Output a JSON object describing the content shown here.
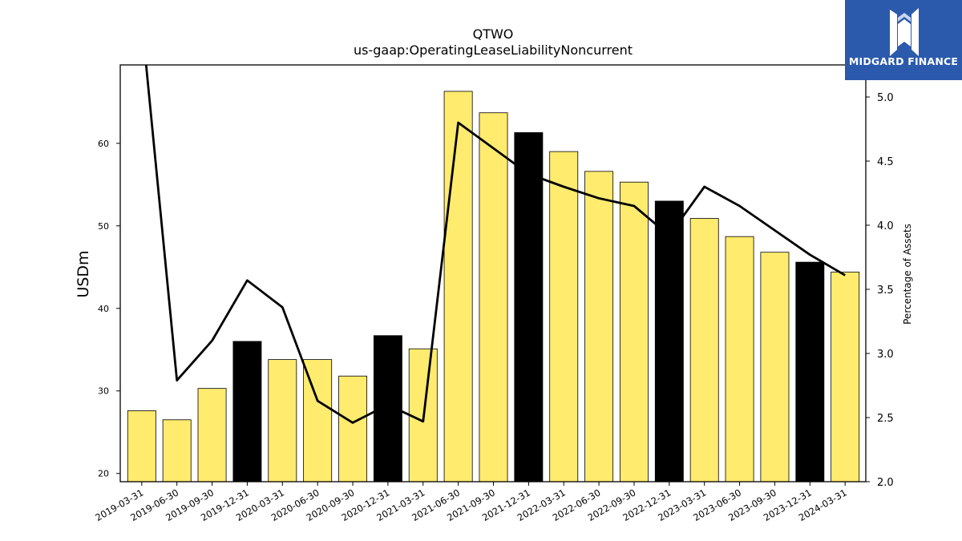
{
  "chart_data": {
    "type": "bar",
    "title": "QTWO",
    "subtitle": "us-gaap:OperatingLeaseLiabilityNoncurrent",
    "ylabel": "USDm",
    "y2label": "Percentage of Assets",
    "ylim": [
      19,
      69.5
    ],
    "y2lim": [
      2.0,
      5.25
    ],
    "yticks": [
      20,
      30,
      40,
      50,
      60
    ],
    "y2ticks": [
      2.0,
      2.5,
      3.0,
      3.5,
      4.0,
      4.5,
      5.0
    ],
    "categories": [
      "2019-03-31",
      "2019-06-30",
      "2019-09-30",
      "2019-12-31",
      "2020-03-31",
      "2020-06-30",
      "2020-09-30",
      "2020-12-31",
      "2021-03-31",
      "2021-06-30",
      "2021-09-30",
      "2021-12-31",
      "2022-03-31",
      "2022-06-30",
      "2022-09-30",
      "2022-12-31",
      "2023-03-31",
      "2023-06-30",
      "2023-09-30",
      "2023-12-31",
      "2024-03-31"
    ],
    "series": [
      {
        "type": "bar",
        "axis": "left",
        "values": [
          27.6,
          26.5,
          30.3,
          36.0,
          33.8,
          33.8,
          31.8,
          36.7,
          35.1,
          66.3,
          63.7,
          61.3,
          59.0,
          56.6,
          55.3,
          53.0,
          50.9,
          48.7,
          46.8,
          45.6,
          44.4
        ],
        "colors": [
          "#ffeb6e",
          "#ffeb6e",
          "#ffeb6e",
          "#000000",
          "#ffeb6e",
          "#ffeb6e",
          "#ffeb6e",
          "#000000",
          "#ffeb6e",
          "#ffeb6e",
          "#ffeb6e",
          "#000000",
          "#ffeb6e",
          "#ffeb6e",
          "#ffeb6e",
          "#000000",
          "#ffeb6e",
          "#ffeb6e",
          "#ffeb6e",
          "#000000",
          "#ffeb6e"
        ]
      },
      {
        "type": "line",
        "axis": "right",
        "color": "#000000",
        "values": [
          5.6,
          2.79,
          3.1,
          3.57,
          3.36,
          2.63,
          2.46,
          2.6,
          2.47,
          4.8,
          4.6,
          4.4,
          4.3,
          4.21,
          4.15,
          3.92,
          4.3,
          4.15,
          3.96,
          3.77,
          3.61
        ]
      }
    ],
    "grid": false,
    "legend": "none"
  },
  "logo": {
    "text": "MIDGARD FINANCE",
    "colors": {
      "background": "#2b5aad",
      "foreground": "#ffffff"
    }
  }
}
